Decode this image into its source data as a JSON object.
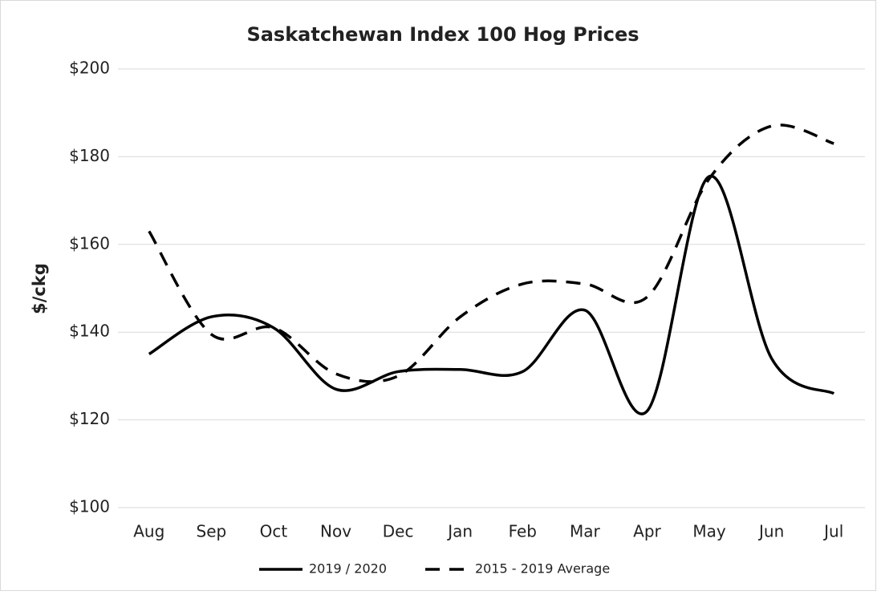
{
  "chart_data": {
    "type": "line",
    "title": "Saskatchewan Index 100 Hog Prices",
    "y_label": "$/ckg",
    "categories": [
      "Aug",
      "Sep",
      "Oct",
      "Nov",
      "Dec",
      "Jan",
      "Feb",
      "Mar",
      "Apr",
      "May",
      "Jun",
      "Jul"
    ],
    "series": [
      {
        "name": "2019 / 2020",
        "color": "#000000",
        "line_style": "solid",
        "smooth": true,
        "values": [
          135,
          143.5,
          141,
          127,
          131,
          131.5,
          131,
          145,
          122,
          175.5,
          134,
          126
        ]
      },
      {
        "name": "2015 - 2019 Average",
        "color": "#000000",
        "line_style": "dashed",
        "smooth": true,
        "values": [
          163,
          139.5,
          141,
          130.5,
          130,
          143.5,
          151,
          151,
          148,
          175,
          187,
          183
        ]
      }
    ],
    "ylim": [
      100,
      200
    ],
    "yticks": [
      {
        "value": 100,
        "label": "$100"
      },
      {
        "value": 120,
        "label": "$120"
      },
      {
        "value": 140,
        "label": "$140"
      },
      {
        "value": 160,
        "label": "$160"
      },
      {
        "value": 180,
        "label": "$180"
      },
      {
        "value": 200,
        "label": "$200"
      }
    ],
    "grid": true,
    "legend": "bottom"
  }
}
